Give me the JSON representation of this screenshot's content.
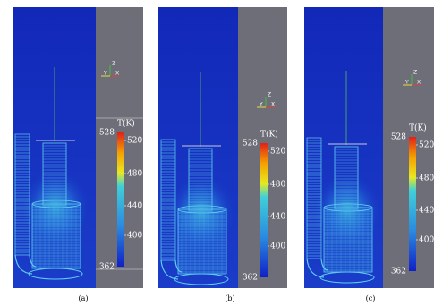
{
  "panels": [
    {
      "label": "(a)",
      "axes": {
        "z": "Z",
        "y": "Y",
        "x": "X"
      },
      "colorbar": {
        "title": "T(K)",
        "max": "528",
        "min": "362",
        "ticks": [
          "520",
          "480",
          "440",
          "400"
        ]
      }
    },
    {
      "label": "(b)",
      "axes": {
        "z": "Z",
        "y": "Y",
        "x": "X"
      },
      "colorbar": {
        "title": "T(K)",
        "max": "528",
        "min": "362",
        "ticks": [
          "520",
          "480",
          "440",
          "400"
        ]
      }
    },
    {
      "label": "(c)",
      "axes": {
        "z": "Z",
        "y": "Y",
        "x": "X"
      },
      "colorbar": {
        "title": "T(K)",
        "max": "528",
        "min": "362",
        "ticks": [
          "520",
          "480",
          "440",
          "400"
        ]
      }
    }
  ]
}
